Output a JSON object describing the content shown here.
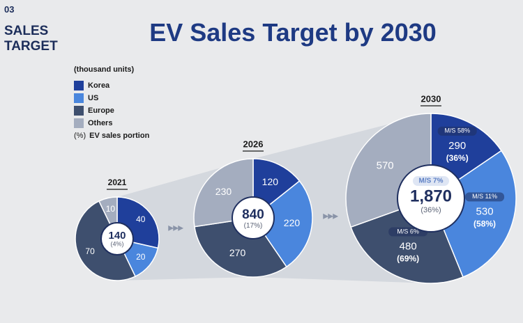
{
  "header": {
    "section_number": "03",
    "section_title_line1": "SALES",
    "section_title_line2": "TARGET",
    "title": "EV Sales Target by 2030"
  },
  "legend": {
    "unit": "(thousand units)",
    "items": [
      {
        "label": "Korea",
        "color": "#1f3f9b"
      },
      {
        "label": "US",
        "color": "#4a86dd"
      },
      {
        "label": "Europe",
        "color": "#3e4f6e"
      },
      {
        "label": "Others",
        "color": "#a4adbf"
      }
    ],
    "portion_symbol": "(%)",
    "portion_label": "EV sales portion"
  },
  "arrows": "▸▸▸",
  "chart_data": {
    "type": "pie",
    "title": "EV Sales Target by 2030",
    "unit": "thousand units",
    "categories": [
      "Korea",
      "US",
      "Europe",
      "Others"
    ],
    "pies": [
      {
        "year": "2021",
        "total": "140",
        "portion": "(4%)",
        "values": [
          40,
          20,
          70,
          10
        ],
        "labels": [
          "40",
          "20",
          "70",
          "10"
        ]
      },
      {
        "year": "2026",
        "total": "840",
        "portion": "(17%)",
        "values": [
          120,
          220,
          270,
          230
        ],
        "labels": [
          "120",
          "220",
          "270",
          "230"
        ]
      },
      {
        "year": "2030",
        "total": "1,870",
        "portion": "(36%)",
        "total_market_share": "M/S 7%",
        "values": [
          290,
          530,
          480,
          570
        ],
        "labels": [
          "290",
          "530",
          "480",
          "570"
        ],
        "portions": [
          "(36%)",
          "(58%)",
          "(69%)",
          ""
        ],
        "market_shares": [
          "M/S 58%",
          "M/S 11%",
          "M/S 6%",
          ""
        ]
      }
    ]
  }
}
